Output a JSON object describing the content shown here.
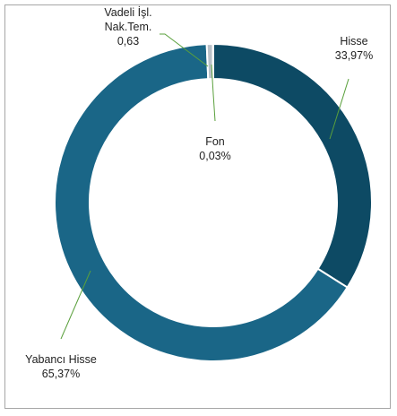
{
  "chart_data": {
    "type": "pie",
    "style": "donut",
    "slices": [
      {
        "name": "Hisse",
        "value": 33.97,
        "label_lines": [
          "Hisse",
          "33,97%"
        ],
        "color": "#0d4a64"
      },
      {
        "name": "Yabancı Hisse",
        "value": 65.37,
        "label_lines": [
          "Yabancı Hisse",
          "65,37%"
        ],
        "color": "#1a6687"
      },
      {
        "name": "Vadeli İşl. Nak.Tem.",
        "value": 0.63,
        "label_lines": [
          "Vadeli İşl.",
          "Nak.Tem.",
          "0,63"
        ],
        "color": "#b9c1c8"
      },
      {
        "name": "Fon",
        "value": 0.03,
        "label_lines": [
          "Fon",
          "0,03%"
        ],
        "color": "#5b7fa0"
      }
    ],
    "leader_line_color": "#5aa03c",
    "legend": "none"
  }
}
